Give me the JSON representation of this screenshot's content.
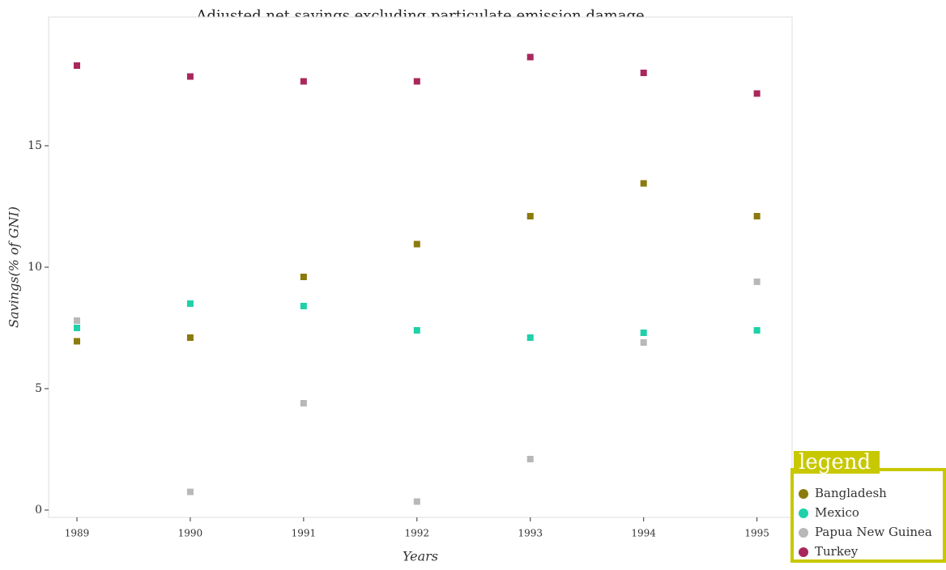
{
  "chart_data": {
    "type": "scatter",
    "title": "Adjusted net savings excluding particulate emission damage",
    "x_label": "Years",
    "y_label": "Savings(% of GNI)",
    "x": [
      1989,
      1990,
      1991,
      1992,
      1993,
      1994,
      1995
    ],
    "series": [
      {
        "name": "Bangladesh",
        "color": "#8b7a0c",
        "values": [
          6.95,
          7.1,
          9.6,
          10.95,
          12.1,
          13.45,
          12.1
        ]
      },
      {
        "name": "Mexico",
        "color": "#1fd1a8",
        "values": [
          7.5,
          8.5,
          8.4,
          7.4,
          7.1,
          7.3,
          7.4
        ]
      },
      {
        "name": "Papua New Guinea",
        "color": "#b8b8b8",
        "values": [
          7.8,
          0.75,
          4.4,
          0.35,
          2.1,
          6.9,
          9.4
        ]
      },
      {
        "name": "Turkey",
        "color": "#a8285c",
        "values": [
          18.3,
          17.85,
          17.65,
          17.65,
          18.65,
          18.0,
          17.15
        ]
      }
    ],
    "xlim": [
      1988.75,
      1995.31
    ],
    "xticks": [
      1989,
      1990,
      1991,
      1992,
      1993,
      1994,
      1995
    ],
    "ylim": [
      -0.3,
      20.3
    ],
    "yticks": [
      0,
      5,
      10,
      15
    ],
    "legend": "lower-right",
    "legend_title": "legend"
  }
}
